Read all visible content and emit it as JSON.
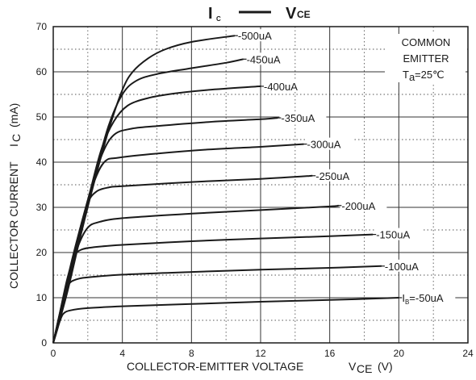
{
  "chart_data": {
    "type": "line",
    "title": {
      "y_symbol": "I",
      "y_sub": "C",
      "x_symbol": "V",
      "x_sub": "CE"
    },
    "xlabel": {
      "text": "COLLECTOR-EMITTER VOLTAGE",
      "symbol": "V",
      "sub": "CE",
      "unit": "(V)"
    },
    "ylabel": {
      "text": "COLLECTOR CURRENT",
      "symbol": "I",
      "sub": "C",
      "unit": "(mA)"
    },
    "xlim": [
      0,
      24
    ],
    "ylim": [
      0,
      70
    ],
    "x_ticks": [
      0,
      4,
      8,
      12,
      16,
      20,
      24
    ],
    "y_ticks": [
      0,
      10,
      20,
      30,
      40,
      50,
      60,
      70
    ],
    "grid": {
      "major": true,
      "minor_dotted": true
    },
    "annotation": {
      "line1": "COMMON",
      "line2": "EMITTER",
      "line3_symbol": "T",
      "line3_sub": "a",
      "line3_value": "=25℃"
    },
    "series": [
      {
        "name": "-50uA",
        "label_prefix": "I",
        "label_sub": "B",
        "label_rest": "=-50uA",
        "points": [
          [
            0,
            0
          ],
          [
            0.2,
            2.5
          ],
          [
            0.4,
            5
          ],
          [
            0.6,
            6.5
          ],
          [
            1,
            7.2
          ],
          [
            2,
            7.7
          ],
          [
            4,
            8.1
          ],
          [
            8,
            8.6
          ],
          [
            12,
            9.1
          ],
          [
            16,
            9.5
          ],
          [
            20,
            10
          ]
        ]
      },
      {
        "name": "-100uA",
        "points": [
          [
            0,
            0
          ],
          [
            0.3,
            5
          ],
          [
            0.6,
            10
          ],
          [
            0.9,
            13
          ],
          [
            1.3,
            14
          ],
          [
            2,
            14.5
          ],
          [
            4,
            15.1
          ],
          [
            8,
            15.7
          ],
          [
            12,
            16.2
          ],
          [
            16,
            16.6
          ],
          [
            19,
            17
          ]
        ]
      },
      {
        "name": "-150uA",
        "points": [
          [
            0,
            0
          ],
          [
            0.4,
            7
          ],
          [
            0.8,
            14
          ],
          [
            1.2,
            19
          ],
          [
            1.6,
            20.6
          ],
          [
            2.4,
            21.2
          ],
          [
            4,
            21.7
          ],
          [
            8,
            22.5
          ],
          [
            12,
            23.1
          ],
          [
            16,
            23.6
          ],
          [
            18.5,
            24
          ]
        ]
      },
      {
        "name": "-200uA",
        "points": [
          [
            0,
            0
          ],
          [
            0.5,
            8
          ],
          [
            1,
            16
          ],
          [
            1.5,
            22
          ],
          [
            2,
            25.5
          ],
          [
            2.6,
            26.7
          ],
          [
            4,
            27.6
          ],
          [
            8,
            28.6
          ],
          [
            12,
            29.4
          ],
          [
            16,
            30.2
          ],
          [
            16.5,
            30.4
          ]
        ]
      },
      {
        "name": "-250uA",
        "points": [
          [
            0,
            0
          ],
          [
            0.5,
            8
          ],
          [
            1,
            17
          ],
          [
            1.5,
            24.5
          ],
          [
            2,
            31
          ],
          [
            2.5,
            33.5
          ],
          [
            3.2,
            34.4
          ],
          [
            4,
            34.7
          ],
          [
            8,
            35.6
          ],
          [
            12,
            36.3
          ],
          [
            15,
            37
          ]
        ]
      },
      {
        "name": "-300uA",
        "points": [
          [
            0,
            0
          ],
          [
            0.6,
            10
          ],
          [
            1.2,
            19
          ],
          [
            1.8,
            28
          ],
          [
            2.4,
            36
          ],
          [
            3,
            40.2
          ],
          [
            3.8,
            41
          ],
          [
            6,
            41.9
          ],
          [
            9,
            42.8
          ],
          [
            12,
            43.4
          ],
          [
            14.5,
            44
          ]
        ]
      },
      {
        "name": "-350uA",
        "points": [
          [
            0,
            0
          ],
          [
            0.7,
            12
          ],
          [
            1.4,
            23
          ],
          [
            2.1,
            33
          ],
          [
            2.8,
            41.5
          ],
          [
            3.5,
            46
          ],
          [
            4.5,
            47.4
          ],
          [
            6,
            48
          ],
          [
            9,
            48.9
          ],
          [
            12,
            49.5
          ],
          [
            13,
            49.8
          ]
        ]
      },
      {
        "name": "-400uA",
        "points": [
          [
            0,
            0
          ],
          [
            0.7,
            11
          ],
          [
            1.4,
            22
          ],
          [
            2.1,
            33
          ],
          [
            2.8,
            43
          ],
          [
            3.5,
            49
          ],
          [
            4.3,
            52.5
          ],
          [
            5.5,
            54.2
          ],
          [
            7,
            55.2
          ],
          [
            9,
            56
          ],
          [
            12,
            56.8
          ]
        ]
      },
      {
        "name": "-450uA",
        "points": [
          [
            0,
            0
          ],
          [
            0.8,
            12
          ],
          [
            1.6,
            25
          ],
          [
            2.4,
            37
          ],
          [
            3.2,
            48
          ],
          [
            4,
            55
          ],
          [
            4.8,
            58
          ],
          [
            6,
            59.5
          ],
          [
            8,
            60.8
          ],
          [
            10,
            62
          ],
          [
            11,
            62.8
          ]
        ]
      },
      {
        "name": "-500uA",
        "points": [
          [
            0,
            0
          ],
          [
            0.8,
            11
          ],
          [
            1.6,
            24
          ],
          [
            2.4,
            36
          ],
          [
            3.2,
            47
          ],
          [
            4,
            56
          ],
          [
            4.6,
            60
          ],
          [
            5.5,
            63
          ],
          [
            6.5,
            65
          ],
          [
            8,
            66.6
          ],
          [
            10.5,
            68
          ]
        ]
      }
    ]
  }
}
